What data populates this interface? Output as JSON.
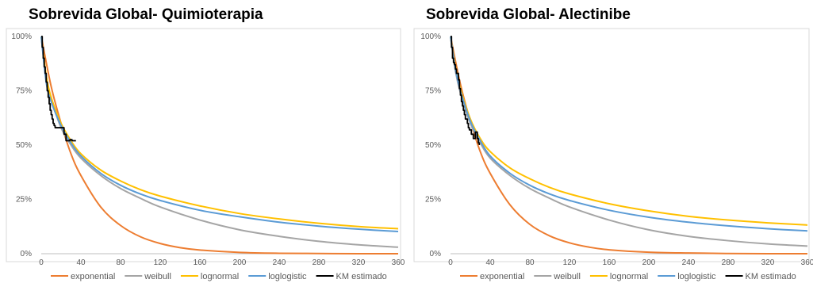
{
  "chart_data": [
    {
      "type": "line",
      "title": "Sobrevida Global- Quimioterapia",
      "xlabel": "",
      "ylabel": "",
      "xlim": [
        0,
        360
      ],
      "ylim": [
        0,
        1
      ],
      "x_ticks": [
        "0",
        "40",
        "80",
        "120",
        "160",
        "200",
        "240",
        "280",
        "320",
        "360"
      ],
      "y_ticks": [
        "0%",
        "25%",
        "50%",
        "75%",
        "100%"
      ],
      "grid": false,
      "legend": "bottom",
      "series": [
        {
          "name": "exponential",
          "color": "#ED7D31",
          "x": [
            0,
            10,
            20,
            30,
            40,
            60,
            80,
            100,
            120,
            140,
            160,
            200,
            240,
            280,
            320,
            360
          ],
          "y": [
            1.0,
            0.77,
            0.6,
            0.46,
            0.36,
            0.215,
            0.13,
            0.078,
            0.047,
            0.028,
            0.017,
            0.006,
            0.002,
            0.001,
            0.0,
            0.0
          ]
        },
        {
          "name": "weibull",
          "color": "#A5A5A5",
          "x": [
            0,
            5,
            10,
            20,
            30,
            40,
            60,
            80,
            100,
            120,
            160,
            200,
            240,
            280,
            320,
            360
          ],
          "y": [
            1.0,
            0.8,
            0.71,
            0.58,
            0.5,
            0.44,
            0.36,
            0.3,
            0.255,
            0.215,
            0.155,
            0.11,
            0.08,
            0.057,
            0.041,
            0.03
          ]
        },
        {
          "name": "lognormal",
          "color": "#FFC000",
          "x": [
            0,
            5,
            10,
            20,
            30,
            40,
            60,
            80,
            100,
            120,
            160,
            200,
            240,
            280,
            320,
            360
          ],
          "y": [
            1.0,
            0.82,
            0.72,
            0.6,
            0.52,
            0.46,
            0.385,
            0.335,
            0.295,
            0.265,
            0.22,
            0.185,
            0.16,
            0.14,
            0.125,
            0.115
          ]
        },
        {
          "name": "loglogistic",
          "color": "#5B9BD5",
          "x": [
            0,
            5,
            10,
            20,
            30,
            40,
            60,
            80,
            100,
            120,
            160,
            200,
            240,
            280,
            320,
            360
          ],
          "y": [
            1.0,
            0.79,
            0.7,
            0.59,
            0.51,
            0.45,
            0.37,
            0.315,
            0.275,
            0.245,
            0.2,
            0.17,
            0.145,
            0.127,
            0.113,
            0.102
          ]
        },
        {
          "name": "KM estimado",
          "color": "#000000",
          "step": true,
          "x": [
            0,
            1,
            2,
            3,
            4,
            5,
            6,
            7,
            8,
            9,
            10,
            11,
            12,
            13,
            14,
            16,
            19,
            22,
            23,
            25,
            27,
            29,
            31,
            33,
            35
          ],
          "y": [
            1.0,
            0.95,
            0.9,
            0.86,
            0.83,
            0.79,
            0.75,
            0.72,
            0.69,
            0.66,
            0.64,
            0.62,
            0.6,
            0.59,
            0.58,
            0.58,
            0.58,
            0.58,
            0.55,
            0.52,
            0.52,
            0.525,
            0.52,
            0.52,
            0.52
          ]
        }
      ]
    },
    {
      "type": "line",
      "title": "Sobrevida Global- Alectinibe",
      "xlabel": "",
      "ylabel": "",
      "xlim": [
        0,
        360
      ],
      "ylim": [
        0,
        1
      ],
      "x_ticks": [
        "0",
        "40",
        "80",
        "120",
        "160",
        "200",
        "240",
        "280",
        "320",
        "360"
      ],
      "y_ticks": [
        "0%",
        "25%",
        "50%",
        "75%",
        "100%"
      ],
      "grid": false,
      "legend": "bottom",
      "series": [
        {
          "name": "exponential",
          "color": "#ED7D31",
          "x": [
            0,
            10,
            20,
            30,
            40,
            60,
            80,
            100,
            120,
            140,
            160,
            200,
            240,
            280,
            320,
            360
          ],
          "y": [
            1.0,
            0.78,
            0.61,
            0.47,
            0.37,
            0.225,
            0.135,
            0.082,
            0.05,
            0.03,
            0.018,
            0.007,
            0.003,
            0.001,
            0.0,
            0.0
          ]
        },
        {
          "name": "weibull",
          "color": "#A5A5A5",
          "x": [
            0,
            5,
            10,
            20,
            30,
            40,
            60,
            80,
            100,
            120,
            160,
            200,
            240,
            280,
            320,
            360
          ],
          "y": [
            1.0,
            0.84,
            0.74,
            0.6,
            0.51,
            0.44,
            0.36,
            0.3,
            0.255,
            0.215,
            0.155,
            0.11,
            0.08,
            0.06,
            0.045,
            0.035
          ]
        },
        {
          "name": "lognormal",
          "color": "#FFC000",
          "x": [
            0,
            5,
            10,
            20,
            30,
            40,
            60,
            80,
            100,
            120,
            160,
            200,
            240,
            280,
            320,
            360
          ],
          "y": [
            1.0,
            0.86,
            0.76,
            0.62,
            0.53,
            0.47,
            0.395,
            0.345,
            0.305,
            0.275,
            0.23,
            0.197,
            0.172,
            0.155,
            0.142,
            0.132
          ]
        },
        {
          "name": "loglogistic",
          "color": "#5B9BD5",
          "x": [
            0,
            5,
            10,
            20,
            30,
            40,
            60,
            80,
            100,
            120,
            160,
            200,
            240,
            280,
            320,
            360
          ],
          "y": [
            1.0,
            0.85,
            0.75,
            0.61,
            0.52,
            0.45,
            0.37,
            0.315,
            0.275,
            0.245,
            0.2,
            0.168,
            0.145,
            0.128,
            0.115,
            0.105
          ]
        },
        {
          "name": "KM estimado",
          "color": "#000000",
          "step": true,
          "x": [
            0,
            1,
            2,
            3,
            4,
            5,
            6,
            8,
            9,
            10,
            11,
            12,
            13,
            14,
            15,
            17,
            18,
            19,
            21,
            23,
            25,
            27,
            28,
            29
          ],
          "y": [
            1.0,
            0.95,
            0.9,
            0.88,
            0.87,
            0.85,
            0.83,
            0.8,
            0.76,
            0.73,
            0.7,
            0.68,
            0.66,
            0.64,
            0.62,
            0.6,
            0.58,
            0.57,
            0.55,
            0.53,
            0.56,
            0.53,
            0.51,
            0.5
          ]
        }
      ]
    }
  ]
}
